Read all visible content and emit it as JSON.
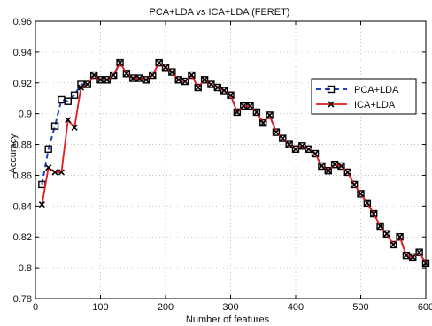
{
  "chart_data": {
    "type": "line",
    "title": "PCA+LDA vs ICA+LDA (FERET)",
    "xlabel": "Number of features",
    "ylabel": "Accuracy",
    "xlim": [
      0,
      600
    ],
    "ylim": [
      0.78,
      0.96
    ],
    "xticks": [
      0,
      100,
      200,
      300,
      400,
      500,
      600
    ],
    "yticks": [
      0.78,
      0.8,
      0.82,
      0.84,
      0.86,
      0.88,
      0.9,
      0.92,
      0.94,
      0.96
    ],
    "xtick_labels": [
      "0",
      "100",
      "200",
      "300",
      "400",
      "500",
      "600"
    ],
    "ytick_labels": [
      "0.78",
      "0.8",
      "0.82",
      "0.84",
      "0.86",
      "0.88",
      "0.9",
      "0.92",
      "0.94",
      "0.96"
    ],
    "grid": true,
    "legend_position": "right",
    "series": [
      {
        "name": "PCA+LDA",
        "color": "#1f3fbf",
        "line_style": "dashed",
        "marker": "square",
        "x": [
          10,
          20,
          30,
          40,
          50,
          60,
          70,
          80,
          90,
          100,
          110,
          120,
          130,
          140,
          150,
          160,
          170,
          180,
          190,
          200,
          210,
          220,
          230,
          240,
          250,
          260,
          270,
          280,
          290,
          300,
          310,
          320,
          330,
          340,
          350,
          360,
          370,
          380,
          390,
          400,
          410,
          420,
          430,
          440,
          450,
          460,
          470,
          480,
          490,
          500,
          510,
          520,
          530,
          540,
          550,
          560,
          570,
          580,
          590,
          600
        ],
        "y": [
          0.854,
          0.877,
          0.892,
          0.909,
          0.908,
          0.912,
          0.919,
          0.919,
          0.925,
          0.922,
          0.922,
          0.925,
          0.933,
          0.926,
          0.923,
          0.923,
          0.922,
          0.925,
          0.933,
          0.93,
          0.927,
          0.922,
          0.921,
          0.925,
          0.917,
          0.922,
          0.919,
          0.917,
          0.915,
          0.912,
          0.901,
          0.905,
          0.905,
          0.901,
          0.894,
          0.899,
          0.888,
          0.884,
          0.88,
          0.877,
          0.879,
          0.877,
          0.874,
          0.866,
          0.863,
          0.867,
          0.866,
          0.862,
          0.854,
          0.848,
          0.842,
          0.835,
          0.827,
          0.822,
          0.815,
          0.82,
          0.808,
          0.807,
          0.81,
          0.803
        ]
      },
      {
        "name": "ICA+LDA",
        "color": "#e41a1c",
        "line_style": "solid",
        "marker": "x",
        "x": [
          10,
          20,
          30,
          40,
          50,
          60,
          70,
          80,
          90,
          100,
          110,
          120,
          130,
          140,
          150,
          160,
          170,
          180,
          190,
          200,
          210,
          220,
          230,
          240,
          250,
          260,
          270,
          280,
          290,
          300,
          310,
          320,
          330,
          340,
          350,
          360,
          370,
          380,
          390,
          400,
          410,
          420,
          430,
          440,
          450,
          460,
          470,
          480,
          490,
          500,
          510,
          520,
          530,
          540,
          550,
          560,
          570,
          580,
          590,
          600
        ],
        "y": [
          0.841,
          0.865,
          0.862,
          0.862,
          0.896,
          0.891,
          0.917,
          0.919,
          0.925,
          0.922,
          0.922,
          0.925,
          0.933,
          0.926,
          0.923,
          0.923,
          0.922,
          0.925,
          0.933,
          0.93,
          0.927,
          0.922,
          0.921,
          0.925,
          0.917,
          0.922,
          0.919,
          0.917,
          0.915,
          0.912,
          0.901,
          0.905,
          0.905,
          0.901,
          0.894,
          0.899,
          0.888,
          0.884,
          0.88,
          0.877,
          0.879,
          0.877,
          0.874,
          0.866,
          0.863,
          0.867,
          0.866,
          0.862,
          0.854,
          0.848,
          0.842,
          0.835,
          0.827,
          0.822,
          0.815,
          0.82,
          0.808,
          0.807,
          0.81,
          0.803
        ]
      }
    ]
  }
}
